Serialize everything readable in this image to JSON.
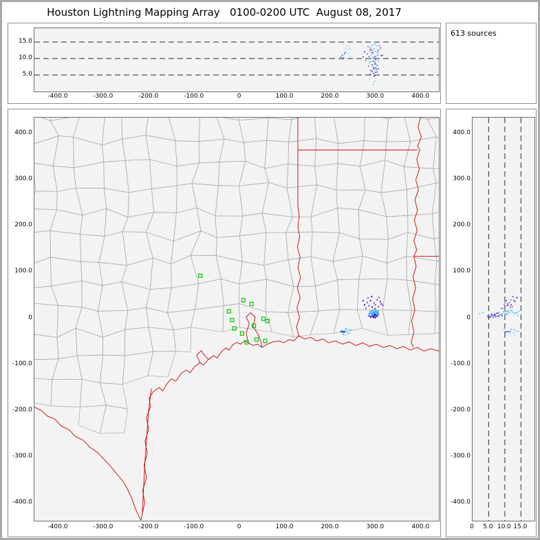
{
  "title": "Houston Lightning Mapping Array   0100-0200 UTC  August 08, 2017",
  "source_count_label": "613 sources",
  "colors": {
    "plot_bg": "#f3f3f3",
    "page_border": "#a8a8a8",
    "panel_border": "#8f8f8f",
    "frame": "#6e6e6e",
    "county_line": "#a9a9a9",
    "state_line": "#cc0000",
    "station": "#00c400",
    "dashed_line": "#2a2a2a",
    "point_colors": {
      "c": "#3fb8e6",
      "b": "#2433cf",
      "p": "#8040d0",
      "v": "#4a10a0",
      "l": "#93d7f2"
    }
  },
  "axes": {
    "ew": {
      "values": [
        -400,
        -300,
        -200,
        -100,
        0,
        100,
        200,
        300,
        400
      ],
      "labels": [
        "-400.0",
        "-300.0",
        "-200.0",
        "-100.0",
        "0",
        "100.0",
        "200.0",
        "300.0",
        "400.0"
      ],
      "lim": [
        -453,
        439
      ]
    },
    "ns": {
      "values": [
        400,
        300,
        200,
        100,
        0,
        -100,
        -200,
        -300,
        -400
      ],
      "labels": [
        "400.0",
        "300.0",
        "200.0",
        "100.0",
        "0",
        "-100.0",
        "-200.0",
        "-300.0",
        "-400.0"
      ],
      "lim": [
        -438,
        434
      ]
    },
    "alt": {
      "side_values": [
        15,
        10,
        5
      ],
      "side_labels": [
        "15.0",
        "10.0",
        "5.0"
      ],
      "bottom_values": [
        0,
        5,
        10,
        15
      ],
      "bottom_labels": [
        "0",
        "5.0",
        "10.0",
        "15.0"
      ],
      "gridlines": [
        5,
        10,
        15
      ],
      "lim": [
        0,
        19.2
      ]
    }
  },
  "chart_data": {
    "type": "scatter",
    "title": "Houston Lightning Mapping Array",
    "time_range": "0100-0200 UTC",
    "date": "August 08, 2017",
    "source_count": 613,
    "panels": [
      {
        "id": "alt-vs-ew",
        "desc": "Altitude (km) vs East-West distance (km)",
        "xlim": [
          -453,
          439
        ],
        "ylim": [
          0,
          19.2
        ],
        "gridlines_y": [
          5,
          10,
          15
        ],
        "grid_style": "dashed"
      },
      {
        "id": "source-count",
        "desc": "source count box",
        "text": "613 sources"
      },
      {
        "id": "plan-view",
        "desc": "Plan view map, North-South vs East-West distance (km), Texas/Louisiana county map",
        "xlim": [
          -453,
          439
        ],
        "ylim": [
          -438,
          434
        ]
      },
      {
        "id": "alt-vs-ns",
        "desc": "North-South distance (km) vs Altitude (km)",
        "xlim": [
          0,
          19.2
        ],
        "ylim": [
          -438,
          434
        ],
        "gridlines_x": [
          5,
          10,
          15
        ],
        "grid_style": "dashed"
      }
    ],
    "lightning_points_xyz": [
      [
        288,
        4,
        5.2,
        "b"
      ],
      [
        292,
        7,
        6.1,
        "b"
      ],
      [
        296,
        5,
        4.6,
        "b"
      ],
      [
        299,
        9,
        5.8,
        "b"
      ],
      [
        294,
        11,
        7.4,
        "b"
      ],
      [
        301,
        6,
        6.6,
        "b"
      ],
      [
        297,
        13,
        8.2,
        "c"
      ],
      [
        290,
        9,
        9.1,
        "c"
      ],
      [
        303,
        11,
        7.9,
        "b"
      ],
      [
        295,
        2,
        5.5,
        "v"
      ],
      [
        300,
        14,
        9.6,
        "c"
      ],
      [
        286,
        7,
        8.8,
        "c"
      ],
      [
        293,
        15,
        10.4,
        "c"
      ],
      [
        305,
        8,
        6.9,
        "b"
      ],
      [
        298,
        1,
        4.9,
        "v"
      ],
      [
        291,
        12,
        11.2,
        "c"
      ],
      [
        302,
        16,
        10.8,
        "c"
      ],
      [
        287,
        14,
        12.1,
        "c"
      ],
      [
        296,
        10,
        13.0,
        "c"
      ],
      [
        300,
        3,
        7.2,
        "b"
      ],
      [
        293,
        6,
        14.1,
        "c"
      ],
      [
        304,
        13,
        12.6,
        "c"
      ],
      [
        289,
        2,
        6.4,
        "b"
      ],
      [
        297,
        8,
        15.0,
        "c"
      ],
      [
        301,
        12,
        13.8,
        "c"
      ],
      [
        285,
        10,
        10.1,
        "c"
      ],
      [
        294,
        17,
        11.6,
        "c"
      ],
      [
        306,
        10,
        9.3,
        "c"
      ],
      [
        292,
        4,
        8.1,
        "b"
      ],
      [
        299,
        15,
        14.4,
        "c"
      ],
      [
        288,
        12,
        13.4,
        "c"
      ],
      [
        303,
        5,
        5.9,
        "b"
      ],
      [
        295,
        9,
        6.8,
        "p"
      ],
      [
        298,
        18,
        12.2,
        "c"
      ],
      [
        290,
        16,
        9.9,
        "c"
      ],
      [
        305,
        15,
        11.1,
        "c"
      ],
      [
        284,
        5,
        7.7,
        "p"
      ],
      [
        296,
        14,
        10.2,
        "c"
      ],
      [
        297,
        6,
        7.0,
        "b"
      ],
      [
        299,
        7,
        8.4,
        "b"
      ],
      [
        295,
        5,
        9.2,
        "b"
      ],
      [
        298,
        9,
        10.6,
        "b"
      ],
      [
        294,
        10,
        2.2,
        "c"
      ],
      [
        297,
        12,
        3.1,
        "c"
      ],
      [
        278,
        22,
        9.4,
        "p"
      ],
      [
        285,
        27,
        10.6,
        "p"
      ],
      [
        292,
        24,
        11.8,
        "v"
      ],
      [
        299,
        29,
        9.8,
        "p"
      ],
      [
        306,
        25,
        12.4,
        "p"
      ],
      [
        312,
        31,
        10.9,
        "v"
      ],
      [
        281,
        34,
        11.4,
        "p"
      ],
      [
        288,
        38,
        12.8,
        "v"
      ],
      [
        296,
        33,
        10.1,
        "p"
      ],
      [
        303,
        40,
        11.9,
        "p"
      ],
      [
        310,
        36,
        13.2,
        "v"
      ],
      [
        275,
        29,
        12.0,
        "v"
      ],
      [
        283,
        44,
        13.6,
        "p"
      ],
      [
        291,
        47,
        12.5,
        "v"
      ],
      [
        307,
        45,
        13.9,
        "p"
      ],
      [
        315,
        28,
        11.0,
        "p"
      ],
      [
        272,
        38,
        10.5,
        "v"
      ],
      [
        298,
        21,
        8.9,
        "p"
      ],
      [
        226,
        -26,
        9.6,
        "l"
      ],
      [
        230,
        -30,
        10.8,
        "l"
      ],
      [
        234,
        -24,
        11.9,
        "c"
      ],
      [
        238,
        -32,
        12.7,
        "l"
      ],
      [
        242,
        -27,
        13.5,
        "l"
      ],
      [
        228,
        -35,
        10.2,
        "c"
      ],
      [
        232,
        -22,
        12.2,
        "l"
      ],
      [
        236,
        -29,
        13.9,
        "l"
      ],
      [
        240,
        -34,
        11.4,
        "l"
      ],
      [
        244,
        -25,
        12.9,
        "c"
      ],
      [
        229,
        -28,
        14.3,
        "l"
      ],
      [
        237,
        -23,
        9.9,
        "l"
      ],
      [
        243,
        -31,
        10.7,
        "l"
      ],
      [
        233,
        -36,
        13.1,
        "l"
      ],
      [
        223,
        -29,
        10.4,
        "b"
      ],
      [
        226,
        -29,
        11.0,
        "b"
      ],
      [
        229,
        -30,
        10.1,
        "b"
      ],
      [
        231,
        -29,
        11.6,
        "b"
      ]
    ],
    "stations_xy": [
      [
        -87,
        92
      ],
      [
        8,
        39
      ],
      [
        26,
        31
      ],
      [
        -24,
        15
      ],
      [
        -17,
        -4
      ],
      [
        -12,
        -22
      ],
      [
        5,
        -33
      ],
      [
        31,
        -16
      ],
      [
        52,
        -1
      ],
      [
        61,
        -6
      ],
      [
        15,
        -52
      ],
      [
        37,
        -46
      ],
      [
        56,
        -49
      ]
    ],
    "map_features": {
      "coast": [
        [
          -218,
          -437
        ],
        [
          -210,
          -400
        ],
        [
          -214,
          -372
        ],
        [
          -206,
          -345
        ],
        [
          -211,
          -318
        ],
        [
          -204,
          -292
        ],
        [
          -209,
          -266
        ],
        [
          -201,
          -240
        ],
        [
          -206,
          -215
        ],
        [
          -197,
          -192
        ],
        [
          -200,
          -172
        ],
        [
          -190,
          -158
        ],
        [
          -178,
          -150
        ],
        [
          -170,
          -157
        ],
        [
          -160,
          -141
        ],
        [
          -151,
          -131
        ],
        [
          -141,
          -136
        ],
        [
          -130,
          -120
        ],
        [
          -118,
          -112
        ],
        [
          -110,
          -118
        ],
        [
          -99,
          -104
        ],
        [
          -88,
          -96
        ],
        [
          -80,
          -101
        ],
        [
          -69,
          -89
        ],
        [
          -58,
          -81
        ],
        [
          -50,
          -86
        ],
        [
          -41,
          -73
        ],
        [
          -31,
          -64
        ],
        [
          -24,
          -69
        ],
        [
          -16,
          -58
        ],
        [
          -7,
          -52
        ],
        [
          2,
          -56
        ],
        [
          10,
          -49
        ],
        [
          19,
          -53
        ],
        [
          29,
          -59
        ],
        [
          39,
          -56
        ],
        [
          49,
          -63
        ],
        [
          61,
          -56
        ],
        [
          73,
          -51
        ],
        [
          86,
          -49
        ],
        [
          97,
          -53
        ],
        [
          109,
          -46
        ],
        [
          119,
          -49
        ],
        [
          130,
          -38
        ],
        [
          143,
          -45
        ],
        [
          156,
          -41
        ],
        [
          169,
          -49
        ],
        [
          183,
          -45
        ],
        [
          196,
          -53
        ],
        [
          211,
          -49
        ],
        [
          226,
          -56
        ],
        [
          241,
          -51
        ],
        [
          256,
          -59
        ],
        [
          271,
          -53
        ],
        [
          286,
          -61
        ],
        [
          301,
          -56
        ],
        [
          316,
          -63
        ],
        [
          331,
          -59
        ],
        [
          346,
          -66
        ],
        [
          361,
          -61
        ],
        [
          376,
          -69
        ],
        [
          391,
          -63
        ],
        [
          406,
          -71
        ],
        [
          421,
          -66
        ],
        [
          439,
          -71
        ]
      ],
      "galveston_bay": [
        [
          19,
          -53
        ],
        [
          14,
          -32
        ],
        [
          21,
          -12
        ],
        [
          14,
          3
        ],
        [
          24,
          12
        ],
        [
          34,
          2
        ],
        [
          29,
          -18
        ],
        [
          40,
          -34
        ],
        [
          46,
          -49
        ],
        [
          49,
          -63
        ]
      ],
      "matagorda_bay": [
        [
          -88,
          -96
        ],
        [
          -95,
          -80
        ],
        [
          -85,
          -70
        ],
        [
          -75,
          -84
        ],
        [
          -69,
          -89
        ]
      ],
      "barrier_island": [
        [
          -195,
          -152
        ],
        [
          -201,
          -198
        ],
        [
          -205,
          -252
        ],
        [
          -209,
          -308
        ],
        [
          -212,
          -362
        ],
        [
          -215,
          -420
        ]
      ],
      "rio_grande": [
        [
          -453,
          -192
        ],
        [
          -437,
          -200
        ],
        [
          -424,
          -212
        ],
        [
          -408,
          -218
        ],
        [
          -394,
          -233
        ],
        [
          -377,
          -241
        ],
        [
          -362,
          -256
        ],
        [
          -345,
          -264
        ],
        [
          -331,
          -279
        ],
        [
          -314,
          -290
        ],
        [
          -300,
          -305
        ],
        [
          -286,
          -319
        ],
        [
          -272,
          -336
        ],
        [
          -258,
          -352
        ],
        [
          -247,
          -371
        ],
        [
          -238,
          -390
        ],
        [
          -231,
          -410
        ],
        [
          -222,
          -430
        ],
        [
          -218,
          -437
        ]
      ],
      "tx_la_border": [
        [
          130,
          -38
        ],
        [
          125,
          -18
        ],
        [
          132,
          2
        ],
        [
          126,
          22
        ],
        [
          133,
          44
        ],
        [
          127,
          66
        ],
        [
          134,
          88
        ],
        [
          128,
          110
        ],
        [
          133,
          132
        ],
        [
          127,
          154
        ],
        [
          132,
          176
        ],
        [
          128,
          198
        ],
        [
          131,
          220
        ],
        [
          128,
          244
        ],
        [
          128,
          364
        ]
      ],
      "tx_ar_border": [
        [
          128,
          364
        ],
        [
          128,
          436
        ]
      ],
      "la_ar_border": [
        [
          128,
          364
        ],
        [
          392,
          364
        ]
      ],
      "mississippi_river": [
        [
          399,
          436
        ],
        [
          393,
          414
        ],
        [
          400,
          392
        ],
        [
          392,
          372
        ],
        [
          397,
          364
        ],
        [
          390,
          344
        ],
        [
          396,
          322
        ],
        [
          388,
          300
        ],
        [
          394,
          278
        ],
        [
          386,
          256
        ],
        [
          392,
          234
        ],
        [
          385,
          212
        ],
        [
          391,
          190
        ],
        [
          384,
          168
        ],
        [
          390,
          148
        ],
        [
          384,
          134
        ],
        [
          389,
          112
        ],
        [
          382,
          90
        ],
        [
          388,
          66
        ],
        [
          381,
          42
        ],
        [
          386,
          18
        ],
        [
          379,
          -6
        ],
        [
          384,
          -30
        ],
        [
          378,
          -52
        ],
        [
          383,
          -63
        ]
      ],
      "la_ms_border": [
        [
          384,
          134
        ],
        [
          439,
          134
        ]
      ]
    },
    "county_grid": {
      "spacing": 52,
      "jitter": 0.45
    }
  }
}
